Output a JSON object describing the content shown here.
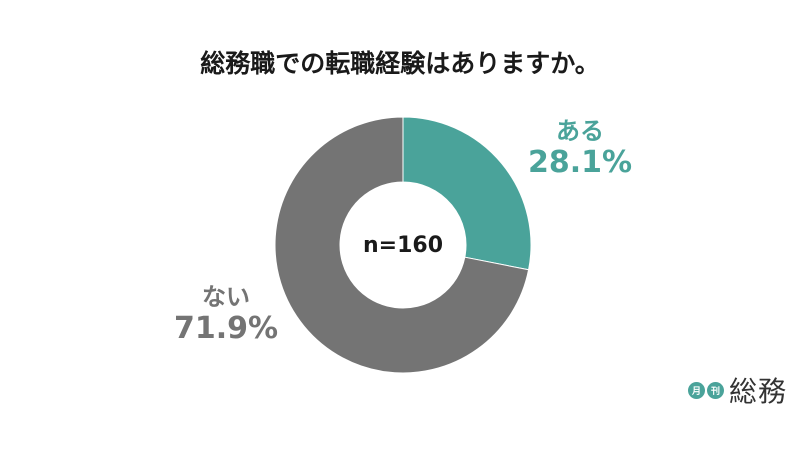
{
  "chart_data": {
    "type": "pie",
    "title": "総務職での転職経験はありますか。",
    "center_label": "n=160",
    "slices": [
      {
        "label": "ある",
        "value": 28.1,
        "display": "28.1%",
        "color": "#4aa39a"
      },
      {
        "label": "ない",
        "value": 71.9,
        "display": "71.9%",
        "color": "#747474"
      }
    ]
  },
  "logo": {
    "badge1": "月",
    "badge2": "刊",
    "word": "総務"
  }
}
